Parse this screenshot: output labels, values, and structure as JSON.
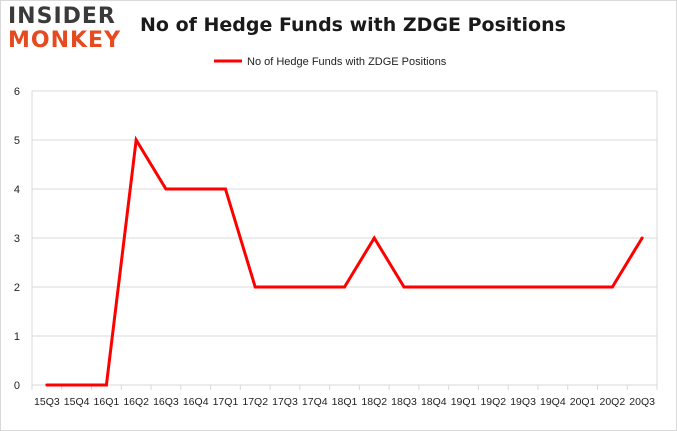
{
  "logo": {
    "line1": "INSIDER",
    "line2": "MONKEY"
  },
  "colors": {
    "series": "#ff0000",
    "grid": "#d9d9d9",
    "logo_dark": "#3a3a3a",
    "logo_accent": "#e64a1e"
  },
  "chart_data": {
    "type": "line",
    "title": "No of Hedge Funds with ZDGE Positions",
    "xlabel": "",
    "ylabel": "",
    "ylim": [
      0,
      6
    ],
    "yticks": [
      0,
      1,
      2,
      3,
      4,
      5,
      6
    ],
    "grid": true,
    "legend_position": "top-center",
    "categories": [
      "15Q3",
      "15Q4",
      "16Q1",
      "16Q2",
      "16Q3",
      "16Q4",
      "17Q1",
      "17Q2",
      "17Q3",
      "17Q4",
      "18Q1",
      "18Q2",
      "18Q3",
      "18Q4",
      "19Q1",
      "19Q2",
      "19Q3",
      "19Q4",
      "20Q1",
      "20Q2",
      "20Q3"
    ],
    "series": [
      {
        "name": "No of Hedge Funds with ZDGE Positions",
        "values": [
          0,
          0,
          0,
          5,
          4,
          4,
          4,
          2,
          2,
          2,
          2,
          3,
          2,
          2,
          2,
          2,
          2,
          2,
          2,
          2,
          3
        ]
      }
    ]
  }
}
